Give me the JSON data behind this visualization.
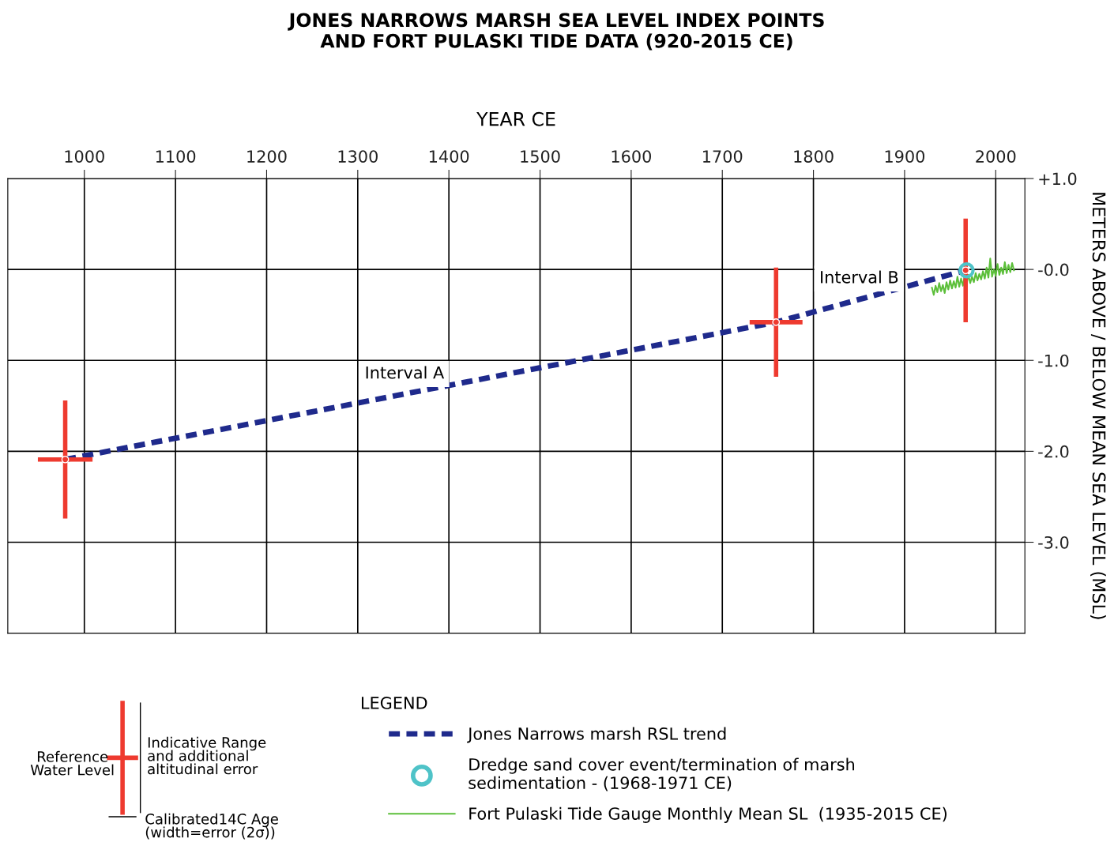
{
  "chart_data": {
    "type": "scatter",
    "title": "JONES NARROWS MARSH SEA LEVEL INDEX POINTS\nAND FORT PULASKI TIDE DATA (920-2015 CE)",
    "xlabel": "YEAR CE",
    "ylabel": "METERS ABOVE / BELOW MEAN SEA LEVEL (MSL)",
    "xlim": [
      916,
      2032
    ],
    "xticks": [
      1000,
      1100,
      1200,
      1300,
      1400,
      1500,
      1600,
      1700,
      1800,
      1900,
      2000
    ],
    "ylim": [
      -4,
      1
    ],
    "yticks": [
      {
        "value": 1,
        "label": "+1.0"
      },
      {
        "value": 0,
        "label": "-0.0"
      },
      {
        "value": -1,
        "label": "-1.0"
      },
      {
        "value": -2,
        "label": "-2.0"
      },
      {
        "value": -3,
        "label": "-3.0"
      }
    ],
    "grid": true,
    "legend": "bottom",
    "legend_title": "LEGEND",
    "series": [
      {
        "type": "line",
        "name": "Jones Narrows marsh RSL trend",
        "color": "#1f2a8c",
        "line_style": "dashed",
        "x": [
          979,
          1759,
          1967
        ],
        "values": [
          -2.09,
          -0.58,
          -0.01
        ]
      },
      {
        "type": "line",
        "name": "Fort Pulaski Tide Gauge Monthly Mean SL  (1935-2015 CE)",
        "color": "#5cbf3a",
        "x": [
          1930,
          1932,
          1934,
          1936,
          1938,
          1940,
          1942,
          1944,
          1946,
          1948,
          1950,
          1952,
          1954,
          1956,
          1958,
          1960,
          1962,
          1964,
          1966,
          1968,
          1970,
          1972,
          1974,
          1976,
          1978,
          1980,
          1982,
          1984,
          1986,
          1988,
          1990,
          1992,
          1994,
          1996,
          1998,
          2000,
          2002,
          2004,
          2006,
          2008,
          2010,
          2012,
          2014,
          2016,
          2018,
          2020
        ],
        "values": [
          -0.2,
          -0.28,
          -0.18,
          -0.25,
          -0.15,
          -0.24,
          -0.17,
          -0.26,
          -0.14,
          -0.22,
          -0.12,
          -0.21,
          -0.13,
          -0.2,
          -0.08,
          -0.19,
          -0.1,
          -0.18,
          -0.07,
          -0.16,
          -0.06,
          -0.15,
          -0.08,
          -0.14,
          -0.04,
          -0.12,
          -0.05,
          -0.11,
          -0.02,
          -0.1,
          0.02,
          -0.09,
          0.12,
          -0.08,
          0.0,
          -0.07,
          0.06,
          -0.06,
          0.02,
          -0.05,
          0.08,
          -0.04,
          0.05,
          -0.03,
          0.07,
          -0.01
        ]
      },
      {
        "color": "#ee3a2f",
        "x": [
          979,
          1759,
          1967
        ],
        "values": [
          -2.09,
          -0.58,
          -0.01
        ],
        "errors": [
          0.65,
          0.6,
          0.57
        ],
        "xerrors": [
          30,
          29,
          null
        ]
      },
      {
        "name": "Dredge sand cover event/termination of marsh\nsedimentation - (1968-1971 CE)",
        "color": "#4fc3c8",
        "marker": "circle",
        "x": [
          1968
        ],
        "values": [
          -0.01
        ]
      }
    ],
    "annotations": [
      "Interval A",
      "Interval B",
      "Reference\nWater Level",
      "Indicative Range\nand additional\naltitudinal error",
      "Calibrated14C Age\n(width=error (2σ))"
    ]
  }
}
